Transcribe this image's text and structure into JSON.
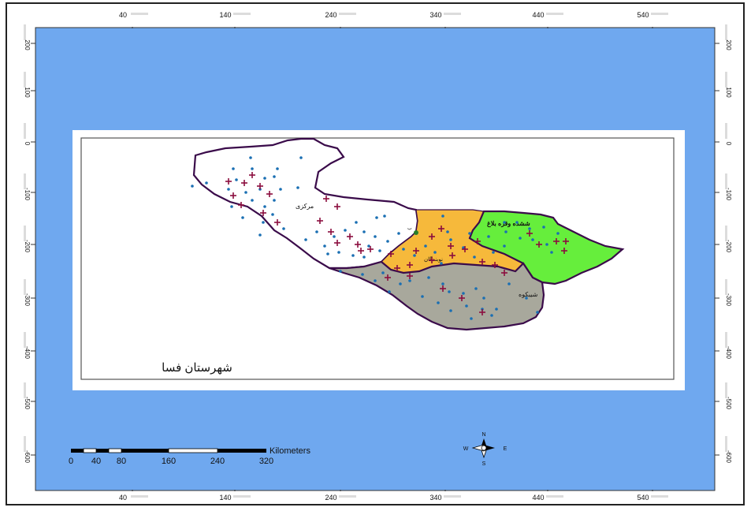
{
  "axes": {
    "x_ticks": [
      "40",
      "140",
      "240",
      "340",
      "440",
      "540"
    ],
    "y_ticks": [
      "200",
      "100",
      "0",
      "-100",
      "-200",
      "-300",
      "-400",
      "-500",
      "-600"
    ]
  },
  "map": {
    "caption": "شهرستان فسا",
    "districts": [
      {
        "label": "مرکزی",
        "color": "#ffffff"
      },
      {
        "label": "ششده وقره بلاغ",
        "color": "#66ee3c"
      },
      {
        "label": "نوبندگان",
        "color": "#f6b93b"
      },
      {
        "label": "شیبکوه",
        "color": "#a8a89c"
      }
    ],
    "marker_colors": {
      "dot": "#1a6fb3",
      "cross": "#8b0d3e"
    }
  },
  "scale_bar": {
    "unit": "Kilometers",
    "labels": [
      "0",
      "40",
      "80",
      "160",
      "240",
      "320"
    ]
  },
  "north_arrow": {
    "n": "N",
    "s": "S",
    "e": "E",
    "w": "W"
  },
  "colors": {
    "ocean": "#6fa8ef",
    "frame_border": "#222222"
  }
}
